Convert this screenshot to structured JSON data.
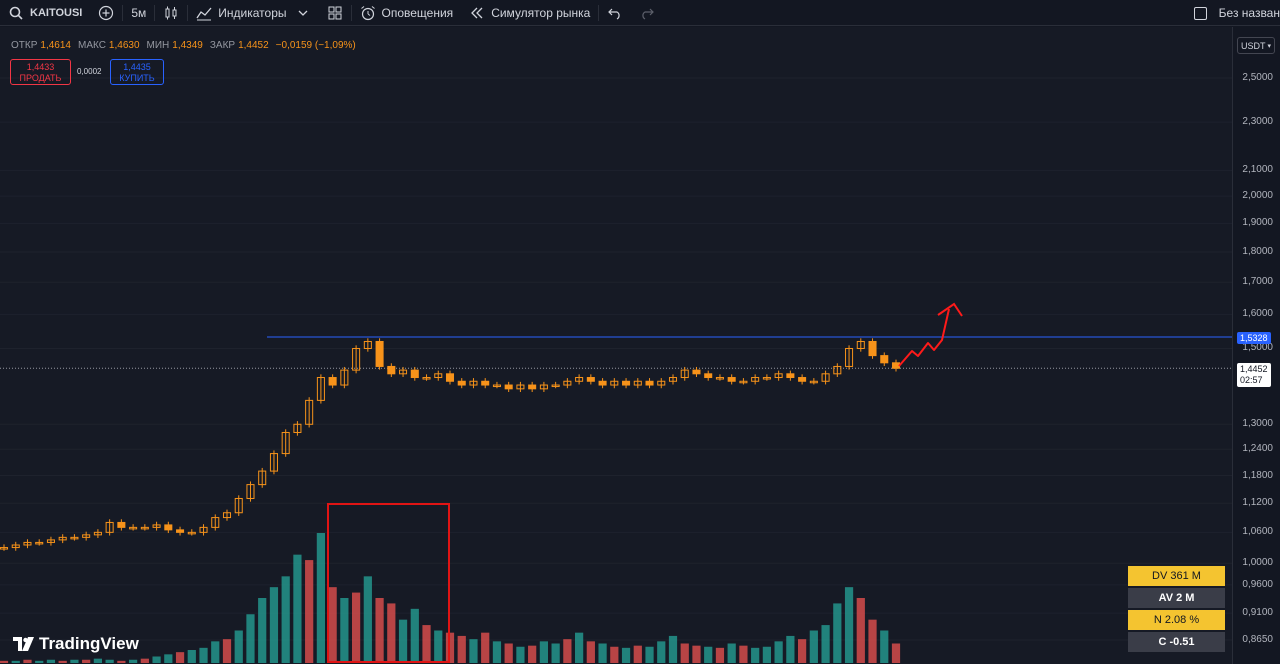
{
  "toolbar": {
    "symbol": "KAITOUSI",
    "interval": "5м",
    "indicators": "Индикаторы",
    "alerts": "Оповещения",
    "replay": "Симулятор рынка",
    "layout_name": "Без назван"
  },
  "legend": {
    "open_label": "ОТКР",
    "open": "1,4614",
    "high_label": "МАКС",
    "high": "1,4630",
    "low_label": "МИН",
    "low": "1,4349",
    "close_label": "ЗАКР",
    "close": "1,4452",
    "change": "−0,0159 (−1,09%)"
  },
  "trade": {
    "sell_price": "1,4433",
    "sell_label": "ПРОДАТЬ",
    "spread": "0,0002",
    "buy_price": "1,4435",
    "buy_label": "КУПИТЬ"
  },
  "currency": "USDT",
  "price_axis": {
    "ticks": [
      "2,5000",
      "2,3000",
      "2,1000",
      "2,0000",
      "1,9000",
      "1,8000",
      "1,7000",
      "1,6000",
      "1,5000",
      "1,3000",
      "1,2400",
      "1,1800",
      "1,1200",
      "1,0600",
      "1,0000",
      "0,9600",
      "0,9100",
      "0,8650"
    ],
    "level_tag": "1,5328",
    "last_price": "1,4452",
    "countdown": "02:57"
  },
  "logo_text": "TradingView",
  "stats": {
    "dv": "DV 361 M",
    "av": "AV 2 M",
    "n": "N 2.08 %",
    "c": "C  -0.51"
  },
  "colors": {
    "candle": "#f7931a",
    "volume_up": "#26a69a",
    "volume_down": "#ef5350",
    "level_line": "#2962ff",
    "annotation": "#ff1a1a"
  },
  "chart_data": {
    "type": "candlestick",
    "y_scale": "log",
    "ylim": [
      0.865,
      2.5
    ],
    "horizontal_level": 1.5328,
    "last_price": 1.4452,
    "close_path": [
      1.03,
      1.035,
      1.04,
      1.04,
      1.045,
      1.05,
      1.05,
      1.055,
      1.06,
      1.08,
      1.07,
      1.07,
      1.07,
      1.075,
      1.065,
      1.06,
      1.06,
      1.07,
      1.09,
      1.1,
      1.13,
      1.16,
      1.19,
      1.23,
      1.28,
      1.3,
      1.36,
      1.42,
      1.4,
      1.44,
      1.5,
      1.52,
      1.45,
      1.43,
      1.44,
      1.42,
      1.42,
      1.43,
      1.41,
      1.4,
      1.41,
      1.4,
      1.4,
      1.39,
      1.4,
      1.39,
      1.4,
      1.4,
      1.41,
      1.42,
      1.41,
      1.4,
      1.41,
      1.4,
      1.41,
      1.4,
      1.41,
      1.42,
      1.44,
      1.43,
      1.42,
      1.42,
      1.41,
      1.41,
      1.42,
      1.42,
      1.43,
      1.42,
      1.41,
      1.41,
      1.43,
      1.45,
      1.5,
      1.52,
      1.48,
      1.46,
      1.445
    ],
    "volume": [
      2,
      2,
      3,
      2,
      3,
      2,
      3,
      3,
      4,
      3,
      2,
      3,
      4,
      6,
      8,
      10,
      12,
      14,
      20,
      22,
      30,
      45,
      60,
      70,
      80,
      100,
      95,
      120,
      70,
      60,
      65,
      80,
      60,
      55,
      40,
      50,
      35,
      30,
      28,
      25,
      22,
      28,
      20,
      18,
      15,
      16,
      20,
      18,
      22,
      28,
      20,
      18,
      15,
      14,
      16,
      15,
      20,
      25,
      18,
      16,
      15,
      14,
      18,
      16,
      14,
      15,
      20,
      25,
      22,
      30,
      35,
      55,
      70,
      60,
      40,
      30,
      18
    ],
    "volume_up": [
      0,
      1,
      0,
      1,
      1,
      0,
      1,
      0,
      1,
      1,
      0,
      1,
      0,
      1,
      1,
      0,
      1,
      1,
      1,
      0,
      1,
      1,
      1,
      1,
      1,
      1,
      0,
      1,
      0,
      1,
      0,
      1,
      0,
      0,
      1,
      1,
      0,
      1,
      0,
      0,
      1,
      0,
      1,
      0,
      1,
      0,
      1,
      1,
      0,
      1,
      0,
      1,
      0,
      1,
      0,
      1,
      1,
      1,
      0,
      0,
      1,
      0,
      1,
      0,
      1,
      1,
      1,
      1,
      0,
      1,
      1,
      1,
      1,
      0,
      0,
      1,
      0
    ]
  },
  "annotations": {
    "volume_highlight_box": true,
    "arrow_up": true
  }
}
